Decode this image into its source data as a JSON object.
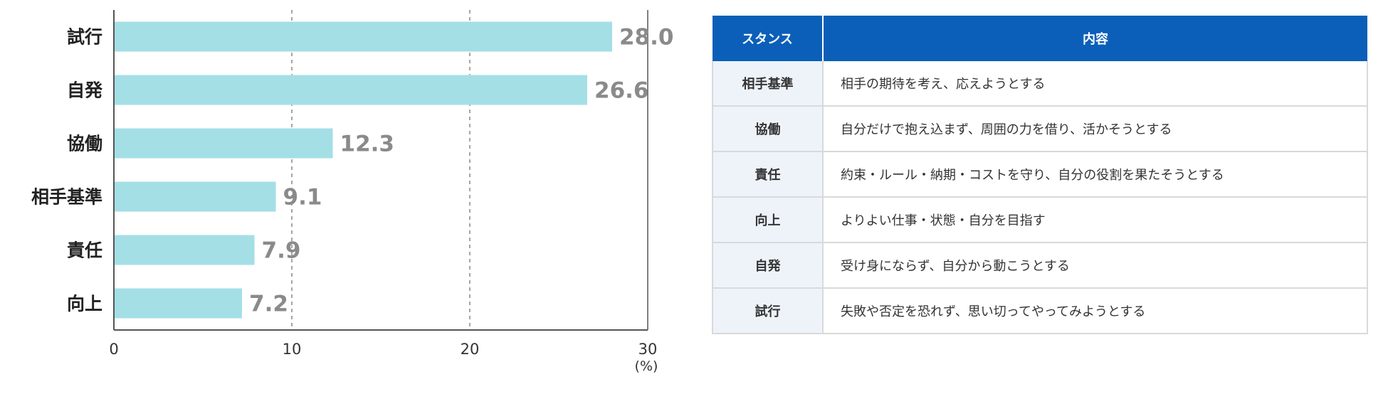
{
  "chart_data": {
    "type": "bar",
    "orientation": "horizontal",
    "categories": [
      "試行",
      "自発",
      "協働",
      "相手基準",
      "責任",
      "向上"
    ],
    "values": [
      28.0,
      26.6,
      12.3,
      9.1,
      7.9,
      7.2
    ],
    "value_labels": [
      "28.0",
      "26.6",
      "12.3",
      "9.1",
      "7.9",
      "7.2"
    ],
    "xlim": [
      0,
      30
    ],
    "xticks": [
      "0",
      "10",
      "20",
      "30"
    ],
    "unit": "(%)",
    "grid": "vertical-dashed",
    "bar_color": "#a4dfe6",
    "label_color": "#8a8a8a"
  },
  "table": {
    "headers": [
      "スタンス",
      "内容"
    ],
    "rows": [
      {
        "stance": "相手基準",
        "content": "相手の期待を考え、応えようとする"
      },
      {
        "stance": "協働",
        "content": "自分だけで抱え込まず、周囲の力を借り、活かそうとする"
      },
      {
        "stance": "責任",
        "content": "約束・ルール・納期・コストを守り、自分の役割を果たそうとする"
      },
      {
        "stance": "向上",
        "content": "よりよい仕事・状態・自分を目指す"
      },
      {
        "stance": "自発",
        "content": "受け身にならず、自分から動こうとする"
      },
      {
        "stance": "試行",
        "content": "失敗や否定を恐れず、思い切ってやってみようとする"
      }
    ],
    "header_color": "#0b5fb8"
  }
}
